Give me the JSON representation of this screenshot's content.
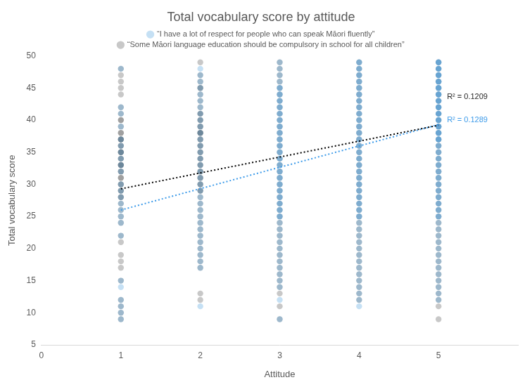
{
  "chart_data": {
    "type": "scatter",
    "title": "Total vocabulary score by attitude",
    "x_label": "Attitude",
    "y_label": "Total vocabulary score",
    "xlim": [
      0,
      6
    ],
    "xticks": [
      0,
      1,
      2,
      3,
      4,
      5
    ],
    "ylim": [
      5,
      50
    ],
    "yticks": [
      5,
      10,
      15,
      20,
      25,
      30,
      35,
      40,
      45,
      50
    ],
    "grid": false,
    "legend": "top",
    "series": [
      {
        "name": "“Some Māori language education should be compulsory in school for all children”",
        "color": "#3a3a3a",
        "marker": "circle",
        "x": [
          1,
          2,
          3,
          4,
          5
        ],
        "values": [
          [
            48,
            47,
            46,
            45,
            44,
            42,
            41,
            40,
            40,
            39,
            38,
            38,
            37,
            37,
            37,
            36,
            36,
            35,
            35,
            35,
            34,
            34,
            33,
            33,
            33,
            32,
            32,
            31,
            31,
            30,
            30,
            29,
            29,
            28,
            28,
            27,
            26,
            25,
            24,
            22,
            21,
            19,
            18,
            17,
            15,
            12,
            11,
            10,
            9
          ],
          [
            49,
            47,
            46,
            45,
            45,
            44,
            43,
            42,
            41,
            41,
            40,
            40,
            39,
            39,
            38,
            38,
            38,
            37,
            37,
            36,
            36,
            35,
            35,
            34,
            34,
            33,
            33,
            32,
            32,
            31,
            31,
            30,
            30,
            29,
            29,
            28,
            27,
            26,
            25,
            24,
            23,
            22,
            21,
            20,
            19,
            18,
            17,
            13,
            12
          ],
          [
            49,
            48,
            47,
            46,
            45,
            44,
            43,
            42,
            41,
            40,
            39,
            38,
            37,
            36,
            35,
            34,
            33,
            32,
            31,
            30,
            29,
            28,
            27,
            26,
            25,
            24,
            23,
            22,
            21,
            20,
            19,
            18,
            17,
            16,
            15,
            14,
            13,
            11,
            9
          ],
          [
            49,
            48,
            47,
            46,
            45,
            44,
            43,
            42,
            41,
            40,
            39,
            38,
            37,
            36,
            35,
            34,
            33,
            32,
            31,
            30,
            29,
            28,
            27,
            26,
            25,
            24,
            23,
            22,
            21,
            20,
            19,
            18,
            17,
            16,
            15,
            14,
            13,
            12
          ],
          [
            49,
            48,
            47,
            46,
            45,
            44,
            43,
            42,
            41,
            40,
            39,
            38,
            37,
            36,
            35,
            34,
            33,
            32,
            31,
            30,
            29,
            28,
            27,
            26,
            25,
            24,
            23,
            22,
            21,
            20,
            19,
            18,
            17,
            16,
            15,
            14,
            13,
            12,
            11,
            9
          ]
        ]
      },
      {
        "name": "“I have a lot of respect for people who can speak Māori fluently”",
        "color": "#2f8fd8",
        "marker": "circle",
        "x": [
          1,
          2,
          3,
          4,
          5
        ],
        "values": [
          [
            48,
            42,
            41,
            39,
            37,
            36,
            35,
            34,
            33,
            32,
            30,
            29,
            28,
            27,
            26,
            25,
            24,
            22,
            15,
            14,
            12,
            11,
            10,
            9
          ],
          [
            48,
            47,
            46,
            45,
            44,
            43,
            42,
            41,
            40,
            39,
            38,
            37,
            36,
            35,
            34,
            33,
            32,
            31,
            30,
            29,
            28,
            27,
            26,
            25,
            24,
            23,
            22,
            21,
            20,
            19,
            18,
            17,
            11
          ],
          [
            49,
            48,
            47,
            46,
            45,
            45,
            44,
            44,
            43,
            43,
            42,
            42,
            41,
            41,
            40,
            40,
            39,
            39,
            38,
            38,
            37,
            37,
            36,
            36,
            35,
            35,
            34,
            34,
            33,
            33,
            32,
            32,
            31,
            31,
            30,
            30,
            29,
            29,
            28,
            28,
            27,
            27,
            26,
            26,
            25,
            25,
            24,
            23,
            22,
            21,
            20,
            19,
            18,
            17,
            16,
            15,
            14,
            12,
            9
          ],
          [
            49,
            49,
            48,
            48,
            47,
            47,
            46,
            46,
            45,
            45,
            44,
            44,
            43,
            43,
            42,
            42,
            41,
            41,
            40,
            40,
            39,
            39,
            38,
            38,
            37,
            37,
            36,
            36,
            35,
            35,
            34,
            34,
            33,
            33,
            32,
            32,
            31,
            31,
            30,
            30,
            29,
            29,
            28,
            28,
            27,
            27,
            26,
            26,
            25,
            25,
            24,
            23,
            22,
            21,
            20,
            19,
            18,
            17,
            16,
            15,
            14,
            13,
            12,
            11
          ],
          [
            49,
            49,
            49,
            48,
            48,
            48,
            47,
            47,
            47,
            46,
            46,
            46,
            45,
            45,
            45,
            44,
            44,
            44,
            43,
            43,
            43,
            42,
            42,
            42,
            41,
            41,
            41,
            40,
            40,
            40,
            39,
            39,
            39,
            38,
            38,
            38,
            37,
            37,
            37,
            36,
            36,
            35,
            35,
            34,
            34,
            33,
            33,
            32,
            32,
            31,
            31,
            30,
            30,
            29,
            29,
            28,
            28,
            27,
            27,
            26,
            26,
            25,
            25,
            24,
            23,
            22,
            21,
            20,
            19,
            18,
            17,
            16,
            15,
            14,
            13,
            12
          ]
        ]
      }
    ],
    "trendlines": [
      {
        "label": "R² = 0.1209",
        "color": "#000000",
        "line_style": "dotted",
        "x": [
          1,
          5
        ],
        "values": [
          29.3,
          39.2
        ]
      },
      {
        "label": "R² = 0.1289",
        "color": "#3d9be9",
        "line_style": "dotted",
        "x": [
          1,
          5
        ],
        "values": [
          26,
          39.3
        ]
      }
    ]
  }
}
